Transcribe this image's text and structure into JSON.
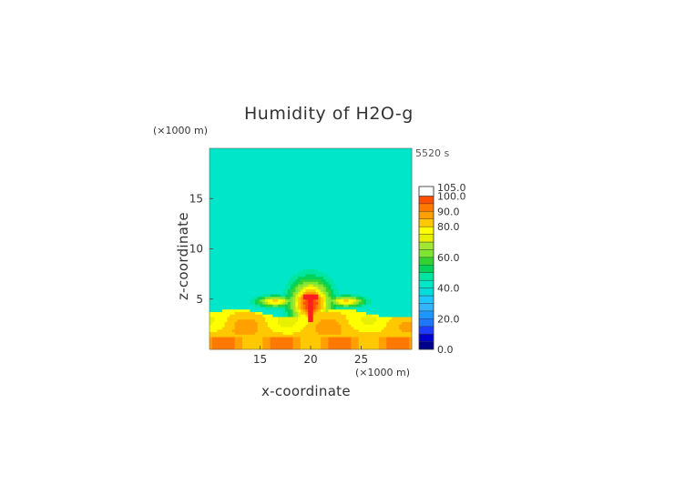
{
  "chart_data": {
    "type": "heatmap",
    "title": "Humidity of H2O-g",
    "time_label": "5520 s",
    "xlabel": "x-coordinate",
    "ylabel": "z-coordinate",
    "x_unit": "(×1000 m)",
    "z_unit": "(×1000 m)",
    "xlim": [
      10,
      30
    ],
    "ylim": [
      0,
      20
    ],
    "x_ticks": [
      15,
      20,
      25
    ],
    "y_ticks": [
      5,
      10,
      15
    ],
    "colorbar": {
      "levels": [
        {
          "value": 0,
          "color": "#00008b"
        },
        {
          "value": 5,
          "color": "#0000cd"
        },
        {
          "value": 10,
          "color": "#1e3cff"
        },
        {
          "value": 15,
          "color": "#1e78ff"
        },
        {
          "value": 20,
          "color": "#1e96ff"
        },
        {
          "value": 25,
          "color": "#32b4ff"
        },
        {
          "value": 30,
          "color": "#1ec8ff"
        },
        {
          "value": 35,
          "color": "#00dcdc"
        },
        {
          "value": 40,
          "color": "#00e6c8"
        },
        {
          "value": 45,
          "color": "#00e6a0"
        },
        {
          "value": 50,
          "color": "#00d25a"
        },
        {
          "value": 55,
          "color": "#32d232"
        },
        {
          "value": 60,
          "color": "#7ce632"
        },
        {
          "value": 65,
          "color": "#a0e632"
        },
        {
          "value": 70,
          "color": "#e6f000"
        },
        {
          "value": 75,
          "color": "#ffff00"
        },
        {
          "value": 80,
          "color": "#ffc800"
        },
        {
          "value": 85,
          "color": "#ffa000"
        },
        {
          "value": 90,
          "color": "#ff7800"
        },
        {
          "value": 95,
          "color": "#ff5000"
        },
        {
          "value": 100,
          "color": "#ff1e1e"
        },
        {
          "value": 105,
          "color": "#ffffff"
        }
      ],
      "tick_labels": [
        "105.0",
        "100.0",
        "90.0",
        "80.0",
        "60.0",
        "40.0",
        "20.0",
        "0.0"
      ],
      "tick_values": [
        105,
        100,
        90,
        80,
        60,
        40,
        20,
        0
      ]
    },
    "background_value": 40,
    "features": [
      {
        "name": "lower-moist-layer",
        "x": [
          10,
          30
        ],
        "z_top": 3.5,
        "value": 75
      },
      {
        "name": "mid-layer",
        "x": [
          10,
          30
        ],
        "z_top": 2.5,
        "value": 85
      },
      {
        "name": "cloud-core",
        "x_center": 20,
        "z_center": 4.5,
        "value": 100
      },
      {
        "name": "updraft-column",
        "x_center": 20,
        "z_range": [
          3,
          5.5
        ],
        "value": 105
      }
    ]
  }
}
